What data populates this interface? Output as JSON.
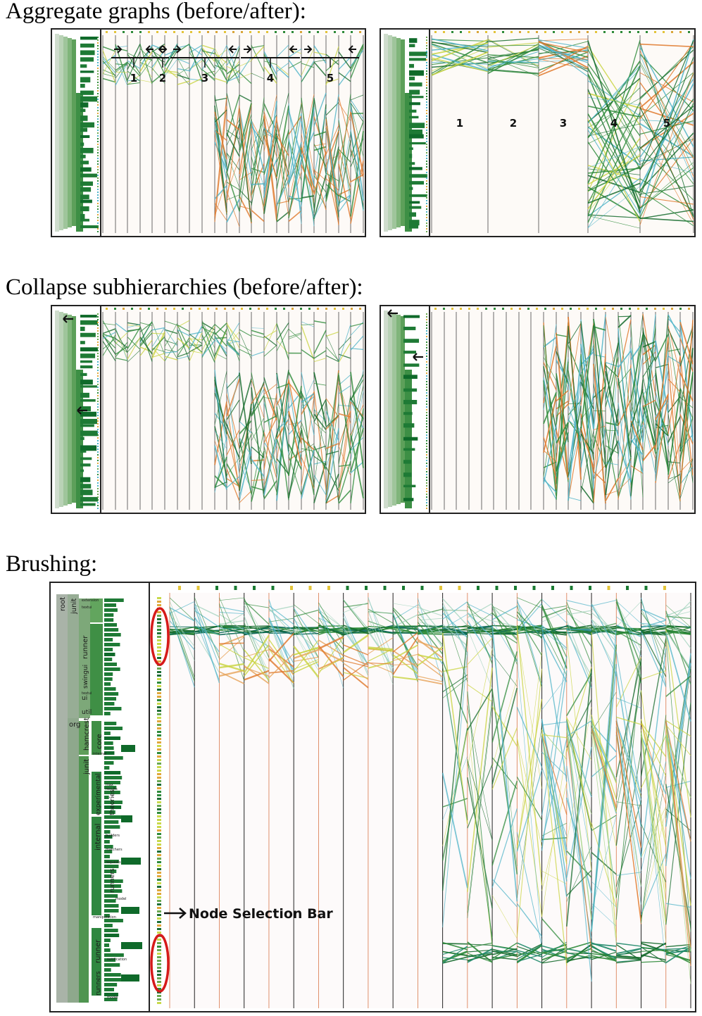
{
  "headings": {
    "aggregate": "Aggregate graphs (before/after):",
    "collapse": "Collapse subhierarchies (before/after):",
    "brushing": "Brushing:"
  },
  "aggregate_labels": [
    "1",
    "2",
    "3",
    "4",
    "5"
  ],
  "annotations": {
    "node_selection_bar": "Node Selection Bar"
  },
  "tree_labels": {
    "root": "root",
    "junit_top": "junit",
    "extension": "extension",
    "runner_top": "runner",
    "swingui": "swingui",
    "textui": "textui",
    "ui": "ui",
    "util": "util",
    "org": "org",
    "hamcrest": "hamcrest",
    "core": "core",
    "internal_h": "internal",
    "junit_org": "junit",
    "experimental": "experimental",
    "max": "max",
    "results": "results",
    "theories": "theories",
    "internal_j": "internal",
    "builders": "builders",
    "matchers": "matchers",
    "requests": "requests",
    "runners": "runners",
    "model": "model",
    "manipulation": "manipulation",
    "runner_org": "runner",
    "notification": "notification",
    "runners_org": "runners",
    "model2": "model"
  },
  "colors": {
    "edge_green": "#2e8b3a",
    "edge_dark": "#156b2c",
    "edge_cyan": "#4fb4c8",
    "edge_orange": "#e0782a",
    "edge_yellow": "#c9d440",
    "tree_dark": "#1e7a35",
    "tree_light": "#d9ead8",
    "highlight_red": "#d61a1a"
  }
}
